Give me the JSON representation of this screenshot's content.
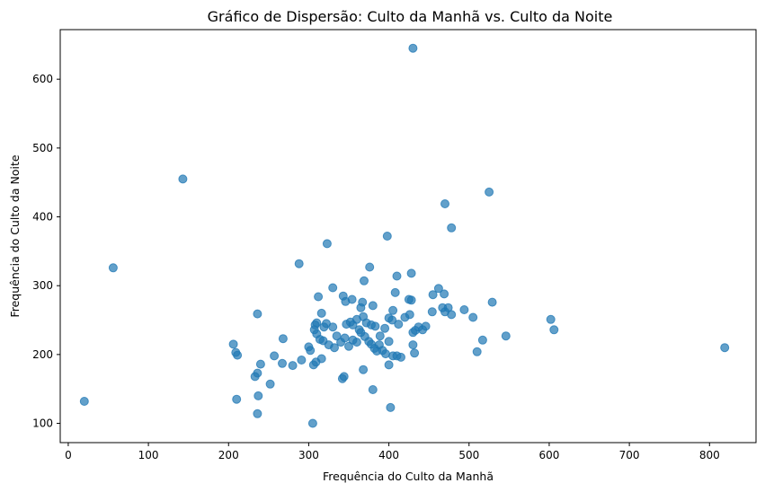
{
  "chart_data": {
    "type": "scatter",
    "title": "Gráfico de Dispersão: Culto da Manhã vs. Culto da Noite",
    "xlabel": "Frequência do Culto da Manhã",
    "ylabel": "Frequência do Culto da Noite",
    "xlim": [
      -10,
      858
    ],
    "ylim": [
      72,
      672
    ],
    "xticks": [
      0,
      100,
      200,
      300,
      400,
      500,
      600,
      700,
      800
    ],
    "yticks": [
      100,
      200,
      300,
      400,
      500,
      600
    ],
    "grid": false,
    "legend": "none",
    "color": "#1f77b4",
    "points": [
      [
        430,
        645
      ],
      [
        143,
        455
      ],
      [
        525,
        436
      ],
      [
        470,
        419
      ],
      [
        478,
        384
      ],
      [
        398,
        372
      ],
      [
        323,
        361
      ],
      [
        56,
        326
      ],
      [
        288,
        332
      ],
      [
        376,
        327
      ],
      [
        428,
        318
      ],
      [
        410,
        314
      ],
      [
        369,
        307
      ],
      [
        330,
        297
      ],
      [
        408,
        290
      ],
      [
        312,
        284
      ],
      [
        343,
        285
      ],
      [
        455,
        287
      ],
      [
        462,
        296
      ],
      [
        469,
        288
      ],
      [
        346,
        277
      ],
      [
        367,
        276
      ],
      [
        380,
        271
      ],
      [
        354,
        280
      ],
      [
        365,
        268
      ],
      [
        428,
        279
      ],
      [
        425,
        280
      ],
      [
        529,
        276
      ],
      [
        236,
        259
      ],
      [
        316,
        260
      ],
      [
        405,
        264
      ],
      [
        454,
        262
      ],
      [
        467,
        268
      ],
      [
        474,
        268
      ],
      [
        494,
        265
      ],
      [
        470,
        262
      ],
      [
        478,
        258
      ],
      [
        505,
        254
      ],
      [
        602,
        251
      ],
      [
        606,
        236
      ],
      [
        546,
        227
      ],
      [
        517,
        221
      ],
      [
        510,
        204
      ],
      [
        819,
        210
      ],
      [
        310,
        246
      ],
      [
        308,
        243
      ],
      [
        319,
        240
      ],
      [
        322,
        245
      ],
      [
        330,
        240
      ],
      [
        335,
        227
      ],
      [
        347,
        244
      ],
      [
        352,
        247
      ],
      [
        355,
        243
      ],
      [
        360,
        251
      ],
      [
        363,
        236
      ],
      [
        368,
        255
      ],
      [
        372,
        246
      ],
      [
        378,
        243
      ],
      [
        383,
        241
      ],
      [
        389,
        227
      ],
      [
        395,
        238
      ],
      [
        400,
        253
      ],
      [
        404,
        250
      ],
      [
        412,
        244
      ],
      [
        420,
        254
      ],
      [
        426,
        258
      ],
      [
        433,
        235
      ],
      [
        437,
        240
      ],
      [
        442,
        236
      ],
      [
        446,
        241
      ],
      [
        430,
        232
      ],
      [
        307,
        236
      ],
      [
        310,
        230
      ],
      [
        314,
        222
      ],
      [
        318,
        220
      ],
      [
        325,
        214
      ],
      [
        332,
        210
      ],
      [
        340,
        218
      ],
      [
        345,
        224
      ],
      [
        350,
        212
      ],
      [
        355,
        221
      ],
      [
        360,
        218
      ],
      [
        365,
        232
      ],
      [
        370,
        226
      ],
      [
        375,
        219
      ],
      [
        378,
        215
      ],
      [
        382,
        209
      ],
      [
        385,
        205
      ],
      [
        388,
        214
      ],
      [
        392,
        206
      ],
      [
        396,
        201
      ],
      [
        400,
        219
      ],
      [
        405,
        198
      ],
      [
        410,
        198
      ],
      [
        415,
        196
      ],
      [
        430,
        214
      ],
      [
        432,
        202
      ],
      [
        206,
        215
      ],
      [
        209,
        203
      ],
      [
        211,
        199
      ],
      [
        236,
        173
      ],
      [
        233,
        168
      ],
      [
        240,
        186
      ],
      [
        257,
        198
      ],
      [
        267,
        187
      ],
      [
        268,
        223
      ],
      [
        280,
        184
      ],
      [
        291,
        192
      ],
      [
        300,
        211
      ],
      [
        302,
        206
      ],
      [
        306,
        185
      ],
      [
        309,
        189
      ],
      [
        316,
        194
      ],
      [
        342,
        165
      ],
      [
        344,
        168
      ],
      [
        368,
        178
      ],
      [
        380,
        149
      ],
      [
        400,
        185
      ],
      [
        20,
        132
      ],
      [
        210,
        135
      ],
      [
        237,
        140
      ],
      [
        236,
        114
      ],
      [
        252,
        157
      ],
      [
        305,
        100
      ],
      [
        402,
        123
      ]
    ]
  }
}
